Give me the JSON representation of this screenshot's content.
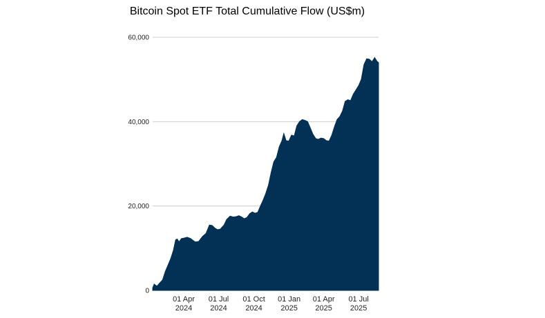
{
  "chart_data": {
    "type": "area",
    "title": "Bitcoin Spot ETF Total Cumulative Flow (US$m)",
    "xlabel": "",
    "ylabel": "",
    "ylim": [
      0,
      60000
    ],
    "grid": true,
    "legend": "none",
    "color": "#033156",
    "y_ticks": [
      {
        "value": 0,
        "label": "0"
      },
      {
        "value": 20000,
        "label": "20,000"
      },
      {
        "value": 40000,
        "label": "40,000"
      },
      {
        "value": 60000,
        "label": "60,000"
      }
    ],
    "x_range": [
      "2024-01-11",
      "2025-08-22"
    ],
    "x_ticks": [
      {
        "date": "2024-04-01",
        "line1": "01 Apr",
        "line2": "2024"
      },
      {
        "date": "2024-07-01",
        "line1": "01 Jul",
        "line2": "2024"
      },
      {
        "date": "2024-10-01",
        "line1": "01 Oct",
        "line2": "2024"
      },
      {
        "date": "2025-01-01",
        "line1": "01 Jan",
        "line2": "2025"
      },
      {
        "date": "2025-04-01",
        "line1": "01 Apr",
        "line2": "2025"
      },
      {
        "date": "2025-07-01",
        "line1": "01 Jul",
        "line2": "2025"
      }
    ],
    "series": [
      {
        "points": [
          [
            "2024-01-11",
            600
          ],
          [
            "2024-01-15",
            1500
          ],
          [
            "2024-01-22",
            1000
          ],
          [
            "2024-01-30",
            1800
          ],
          [
            "2024-02-06",
            2500
          ],
          [
            "2024-02-13",
            4500
          ],
          [
            "2024-02-20",
            6000
          ],
          [
            "2024-02-27",
            7500
          ],
          [
            "2024-03-05",
            9500
          ],
          [
            "2024-03-11",
            12000
          ],
          [
            "2024-03-15",
            12200
          ],
          [
            "2024-03-20",
            11500
          ],
          [
            "2024-03-26",
            12300
          ],
          [
            "2024-04-01",
            12400
          ],
          [
            "2024-04-10",
            12600
          ],
          [
            "2024-04-19",
            12300
          ],
          [
            "2024-04-26",
            11800
          ],
          [
            "2024-05-01",
            11500
          ],
          [
            "2024-05-10",
            11600
          ],
          [
            "2024-05-20",
            12800
          ],
          [
            "2024-05-29",
            13500
          ],
          [
            "2024-06-07",
            15500
          ],
          [
            "2024-06-14",
            15400
          ],
          [
            "2024-06-21",
            14800
          ],
          [
            "2024-06-28",
            14400
          ],
          [
            "2024-07-05",
            14500
          ],
          [
            "2024-07-15",
            15500
          ],
          [
            "2024-07-22",
            16800
          ],
          [
            "2024-07-31",
            17600
          ],
          [
            "2024-08-08",
            17400
          ],
          [
            "2024-08-16",
            17500
          ],
          [
            "2024-08-23",
            17700
          ],
          [
            "2024-08-30",
            17400
          ],
          [
            "2024-09-06",
            17000
          ],
          [
            "2024-09-13",
            17300
          ],
          [
            "2024-09-20",
            18200
          ],
          [
            "2024-09-27",
            18600
          ],
          [
            "2024-10-04",
            18300
          ],
          [
            "2024-10-11",
            18500
          ],
          [
            "2024-10-18",
            20000
          ],
          [
            "2024-10-25",
            21400
          ],
          [
            "2024-11-01",
            23000
          ],
          [
            "2024-11-08",
            25000
          ],
          [
            "2024-11-15",
            28000
          ],
          [
            "2024-11-22",
            30500
          ],
          [
            "2024-11-29",
            31500
          ],
          [
            "2024-12-06",
            34000
          ],
          [
            "2024-12-13",
            35500
          ],
          [
            "2024-12-18",
            37200
          ],
          [
            "2024-12-24",
            35500
          ],
          [
            "2024-12-31",
            35400
          ],
          [
            "2025-01-07",
            36800
          ],
          [
            "2025-01-14",
            36600
          ],
          [
            "2025-01-21",
            39000
          ],
          [
            "2025-01-28",
            40000
          ],
          [
            "2025-02-04",
            40500
          ],
          [
            "2025-02-11",
            40300
          ],
          [
            "2025-02-18",
            40000
          ],
          [
            "2025-02-25",
            38500
          ],
          [
            "2025-03-04",
            37000
          ],
          [
            "2025-03-11",
            36000
          ],
          [
            "2025-03-18",
            35800
          ],
          [
            "2025-03-25",
            36100
          ],
          [
            "2025-04-01",
            36000
          ],
          [
            "2025-04-08",
            35500
          ],
          [
            "2025-04-15",
            35400
          ],
          [
            "2025-04-22",
            36800
          ],
          [
            "2025-04-29",
            38800
          ],
          [
            "2025-05-06",
            40500
          ],
          [
            "2025-05-13",
            41200
          ],
          [
            "2025-05-20",
            42500
          ],
          [
            "2025-05-27",
            44800
          ],
          [
            "2025-06-03",
            45200
          ],
          [
            "2025-06-10",
            45000
          ],
          [
            "2025-06-17",
            46500
          ],
          [
            "2025-06-24",
            47500
          ],
          [
            "2025-07-01",
            48500
          ],
          [
            "2025-07-08",
            50000
          ],
          [
            "2025-07-15",
            53500
          ],
          [
            "2025-07-22",
            54900
          ],
          [
            "2025-07-29",
            54800
          ],
          [
            "2025-08-05",
            54200
          ],
          [
            "2025-08-12",
            55200
          ],
          [
            "2025-08-18",
            54300
          ],
          [
            "2025-08-22",
            54000
          ]
        ]
      }
    ]
  }
}
